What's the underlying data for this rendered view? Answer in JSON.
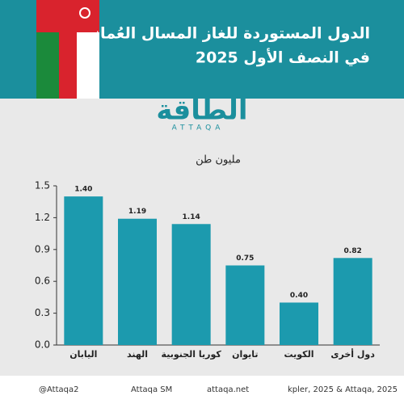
{
  "chart_data": {
    "type": "bar",
    "title": "الدول المستوردة للغاز المسال العُماني",
    "subtitle": "في النصف الأول 2025",
    "y_label": "مليون طن",
    "categories": [
      "اليابان",
      "الهند",
      "كوريا الجنوبية",
      "تايوان",
      "الكويت",
      "دول أخرى"
    ],
    "values": [
      1.4,
      1.19,
      1.14,
      0.75,
      0.4,
      0.82
    ],
    "value_labels": [
      "1.40",
      "1.19",
      "1.14",
      "0.75",
      "0.40",
      "0.82"
    ],
    "color": "#1c9aae",
    "ylim": [
      0,
      1.5
    ],
    "yticks": [
      {
        "value": 0,
        "label": "0.0"
      },
      0.3,
      0.6,
      0.9,
      1.2,
      1.5
    ],
    "grid": false
  },
  "logo": {
    "name": "الطاقة",
    "sub": "ATTAQA"
  },
  "footer": {
    "twitter": "@Attaqa2",
    "youtube": "Attaqa SM",
    "web": "attaqa.net",
    "source": "kpler, 2025 & Attaqa, 2025"
  }
}
